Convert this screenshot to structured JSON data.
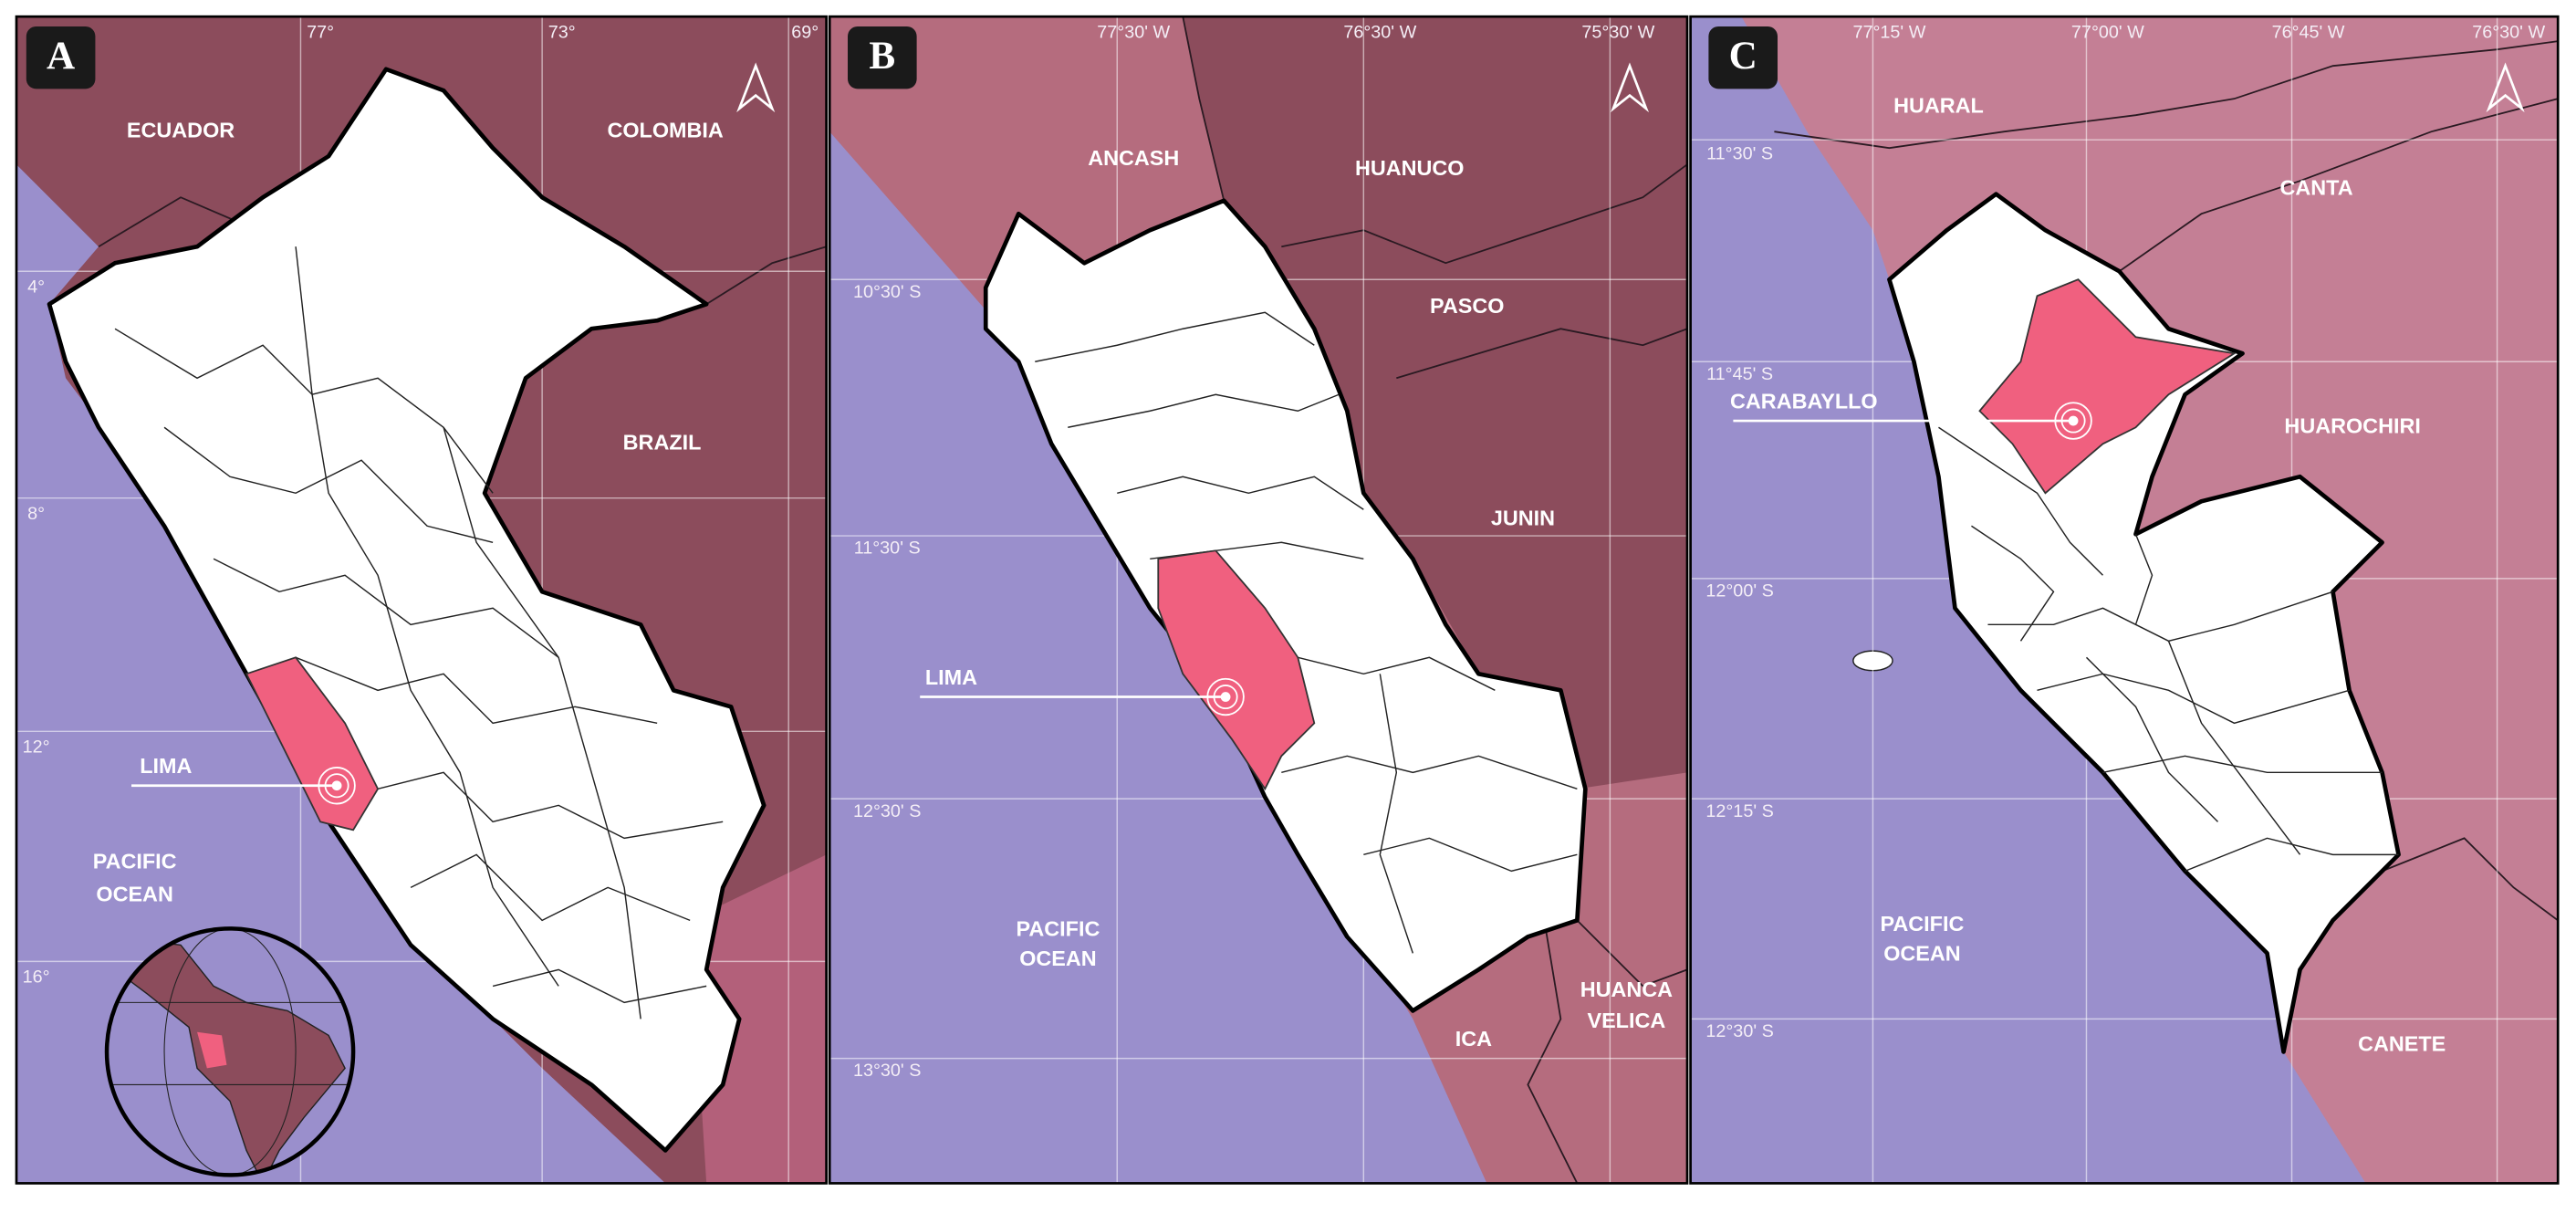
{
  "panels": [
    {
      "letter": "A",
      "longitudes": [
        "77°",
        "73°",
        "69°"
      ],
      "latitudes": [
        "4°",
        "8°",
        "12°",
        "16°"
      ],
      "labels": [
        "ECUADOR",
        "COLOMBIA",
        "BRAZIL",
        "LIMA",
        "PACIFIC",
        "OCEAN"
      ]
    },
    {
      "letter": "B",
      "longitudes": [
        "77°30' W",
        "76°30' W",
        "75°30' W"
      ],
      "latitudes": [
        "10°30' S",
        "11°30' S",
        "12°30' S",
        "13°30' S"
      ],
      "labels": [
        "ANCASH",
        "HUANUCO",
        "PASCO",
        "JUNIN",
        "LIMA",
        "PACIFIC",
        "OCEAN",
        "ICA",
        "HUANCA",
        "VELICA"
      ]
    },
    {
      "letter": "C",
      "longitudes": [
        "77°15' W",
        "77°00' W",
        "76°45' W",
        "76°30' W"
      ],
      "latitudes": [
        "11°30' S",
        "11°45' S",
        "12°00' S",
        "12°15' S",
        "12°30' S"
      ],
      "labels": [
        "HUARAL",
        "CANTA",
        "CARABAYLLO",
        "HUAROCHIRI",
        "PACIFIC",
        "OCEAN",
        "CANETE"
      ]
    }
  ]
}
